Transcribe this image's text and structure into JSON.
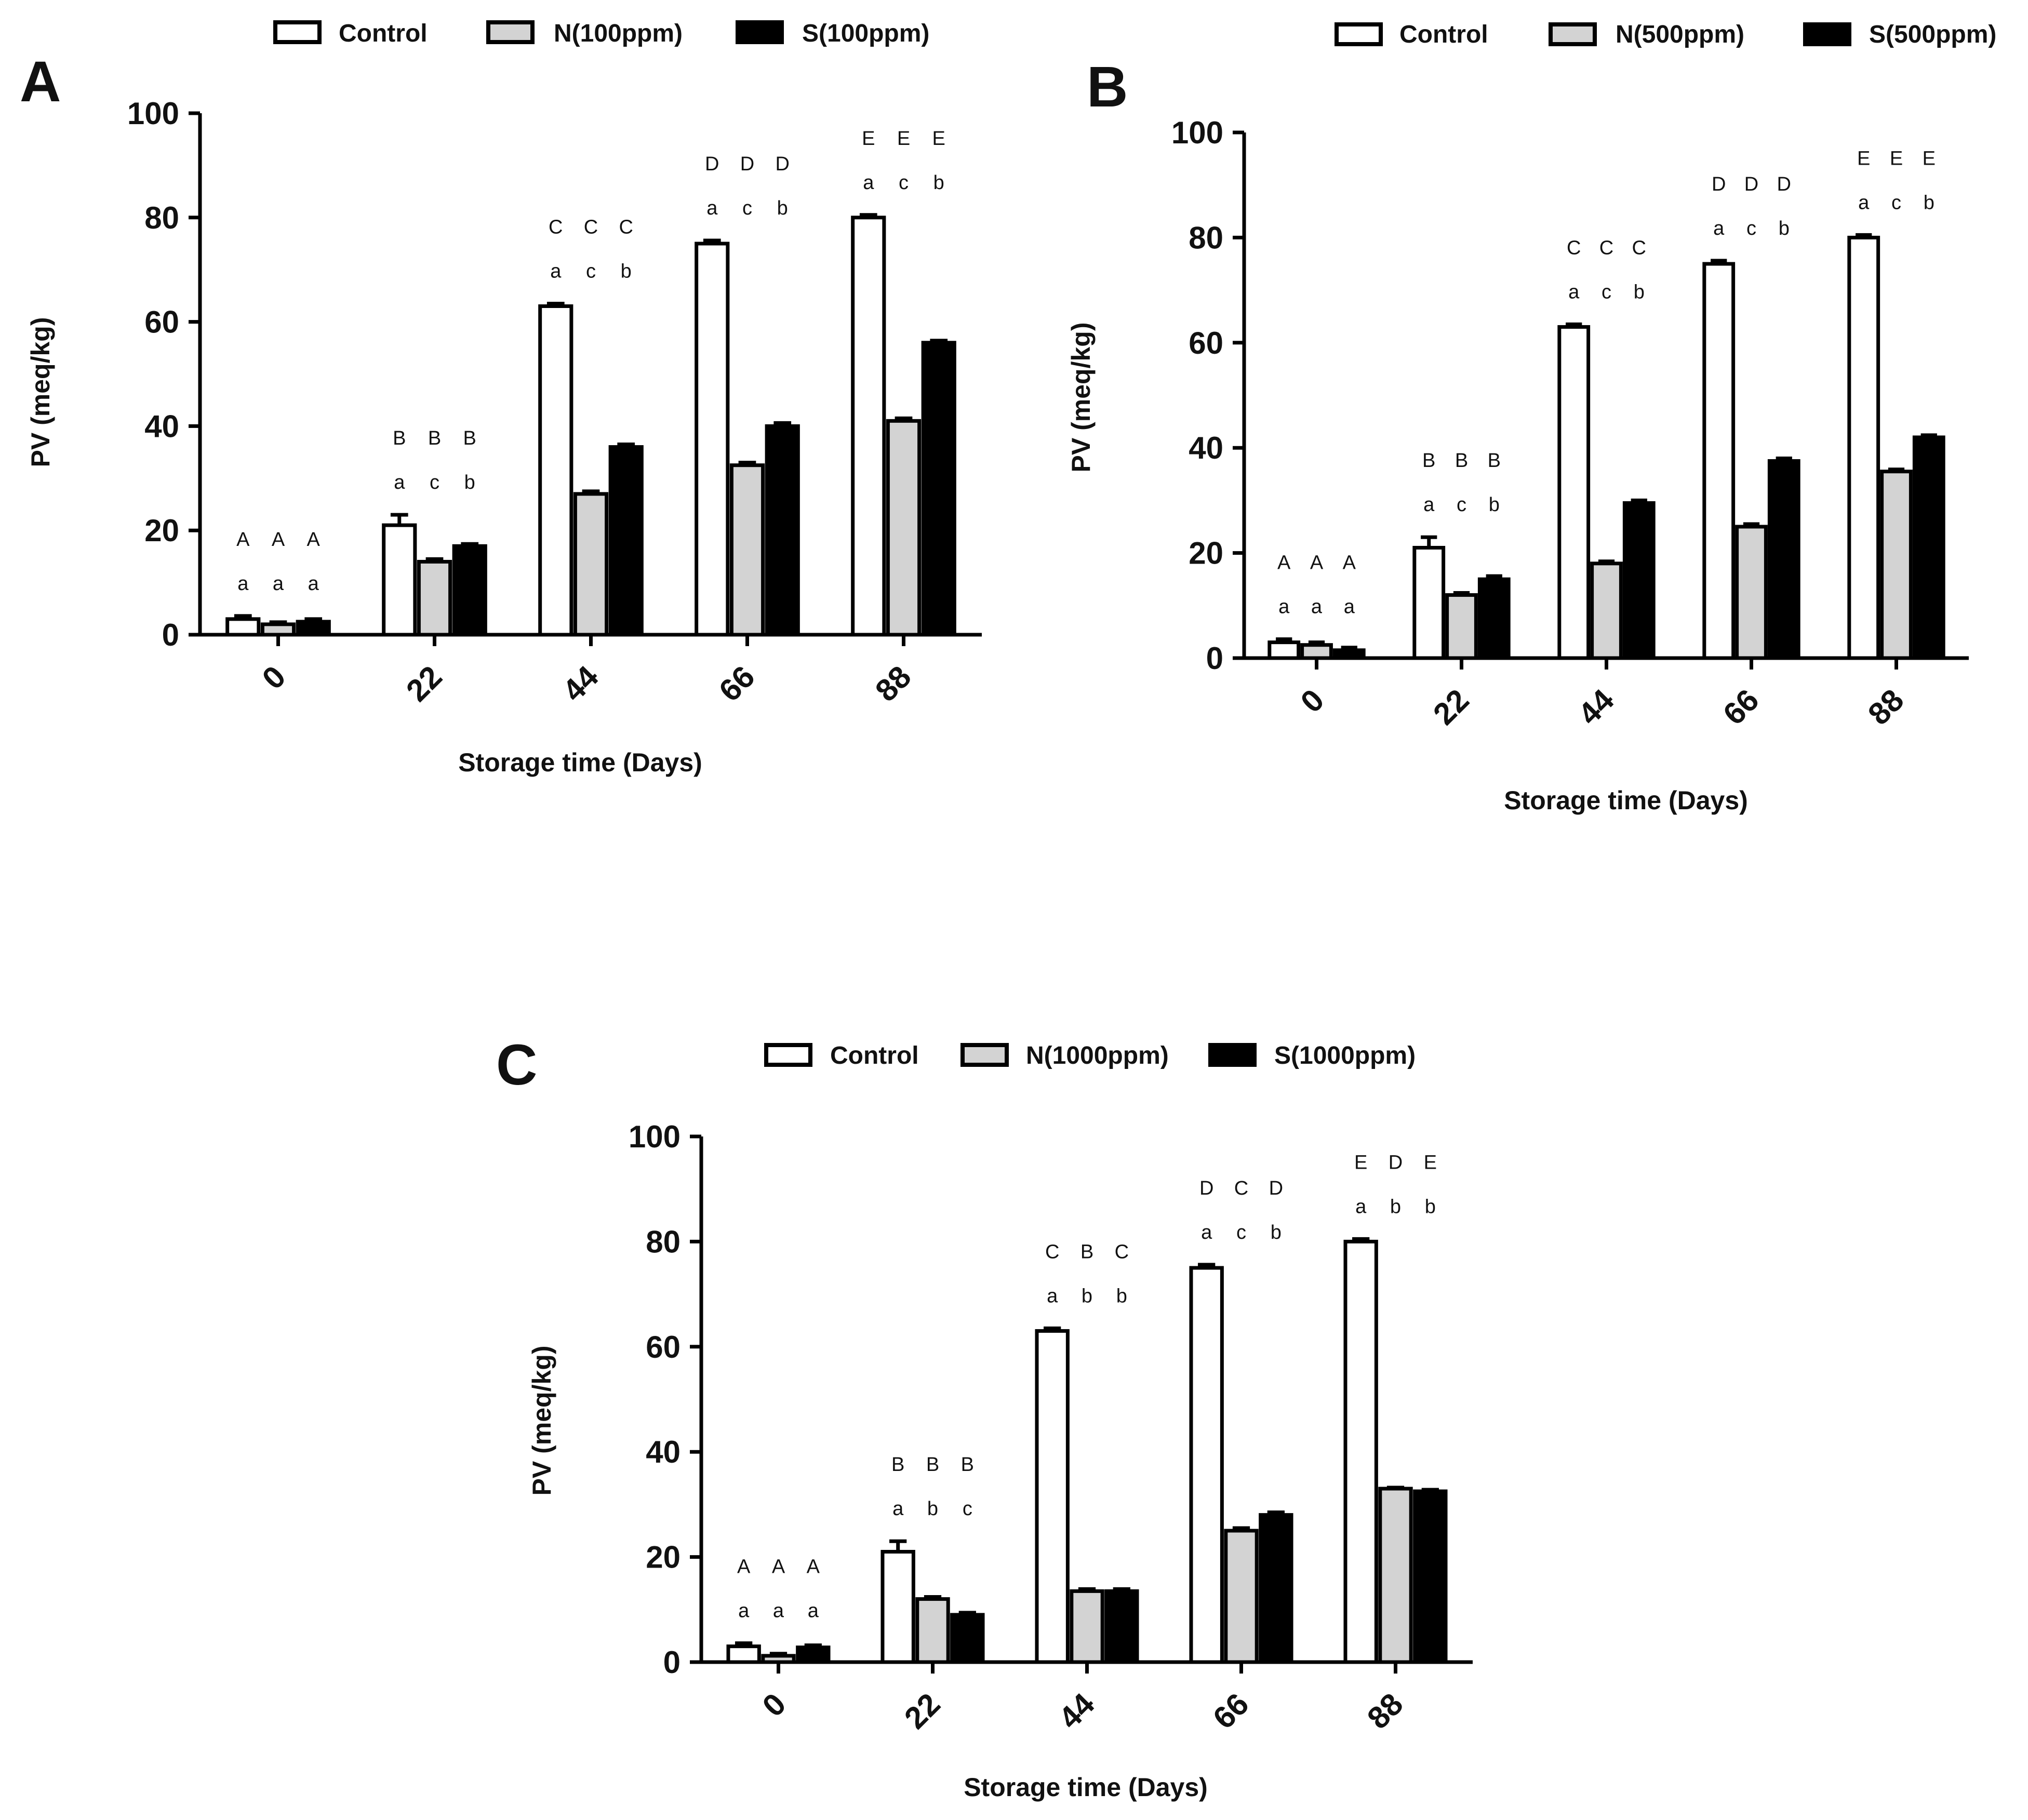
{
  "figure": {
    "fill_colors": {
      "Control": "#ffffff",
      "N": "#d3d3d3",
      "S": "#000000"
    },
    "stroke_color": "#000000"
  },
  "chart_data": [
    {
      "type": "bar",
      "panel": "A",
      "categories": [
        "0",
        "22",
        "44",
        "66",
        "88"
      ],
      "series": [
        {
          "name": "Control",
          "values": [
            3,
            21,
            63,
            75,
            80
          ],
          "errors": [
            0.6,
            2.0,
            0.5,
            0.6,
            0.5
          ],
          "sig_lower": [
            "a",
            "a",
            "a",
            "a",
            "a"
          ],
          "sig_upper": [
            "A",
            "B",
            "C",
            "D",
            "E"
          ]
        },
        {
          "name": "N(100ppm)",
          "values": [
            2,
            14,
            27,
            32.5,
            41
          ],
          "errors": [
            0.4,
            0.5,
            0.5,
            0.5,
            0.5
          ],
          "sig_lower": [
            "a",
            "c",
            "c",
            "c",
            "c"
          ],
          "sig_upper": [
            "A",
            "B",
            "C",
            "D",
            "E"
          ]
        },
        {
          "name": "S(100ppm)",
          "values": [
            2.5,
            17,
            36,
            40,
            56
          ],
          "errors": [
            0.5,
            0.4,
            0.5,
            0.6,
            0.4
          ],
          "sig_lower": [
            "a",
            "b",
            "b",
            "b",
            "b"
          ],
          "sig_upper": [
            "A",
            "B",
            "C",
            "D",
            "E"
          ]
        }
      ],
      "title": "",
      "xlabel": "Storage time (Days)",
      "ylabel": "PV (meq/kg)",
      "ylim": [
        0,
        100
      ],
      "yticks": [
        "0",
        "20",
        "40",
        "60",
        "80",
        "100"
      ],
      "legend": "top"
    },
    {
      "type": "bar",
      "panel": "B",
      "categories": [
        "0",
        "22",
        "44",
        "66",
        "88"
      ],
      "series": [
        {
          "name": "Control",
          "values": [
            3,
            21,
            63,
            75,
            80
          ],
          "errors": [
            0.6,
            2.0,
            0.5,
            0.6,
            0.5
          ],
          "sig_lower": [
            "a",
            "a",
            "a",
            "a",
            "a"
          ],
          "sig_upper": [
            "A",
            "B",
            "C",
            "D",
            "E"
          ]
        },
        {
          "name": "N(500ppm)",
          "values": [
            2.5,
            12,
            18,
            25,
            35.5
          ],
          "errors": [
            0.5,
            0.4,
            0.4,
            0.5,
            0.4
          ],
          "sig_lower": [
            "a",
            "c",
            "c",
            "c",
            "c"
          ],
          "sig_upper": [
            "A",
            "B",
            "C",
            "D",
            "E"
          ]
        },
        {
          "name": "S(500ppm)",
          "values": [
            1.5,
            15,
            29.5,
            37.5,
            42
          ],
          "errors": [
            0.5,
            0.6,
            0.5,
            0.5,
            0.4
          ],
          "sig_lower": [
            "a",
            "b",
            "b",
            "b",
            "b"
          ],
          "sig_upper": [
            "A",
            "B",
            "C",
            "D",
            "E"
          ]
        }
      ],
      "title": "",
      "xlabel": "Storage time (Days)",
      "ylabel": "PV (meq/kg)",
      "ylim": [
        0,
        100
      ],
      "yticks": [
        "0",
        "20",
        "40",
        "60",
        "80",
        "100"
      ],
      "legend": "top"
    },
    {
      "type": "bar",
      "panel": "C",
      "categories": [
        "0",
        "22",
        "44",
        "66",
        "88"
      ],
      "series": [
        {
          "name": "Control",
          "values": [
            3,
            21,
            63,
            75,
            80
          ],
          "errors": [
            0.6,
            2.0,
            0.5,
            0.6,
            0.5
          ],
          "sig_lower": [
            "a",
            "a",
            "a",
            "a",
            "a"
          ],
          "sig_upper": [
            "A",
            "B",
            "C",
            "D",
            "E"
          ]
        },
        {
          "name": "N(1000ppm)",
          "values": [
            1.2,
            12,
            13.5,
            25,
            33
          ],
          "errors": [
            0.4,
            0.4,
            0.4,
            0.5,
            0.2
          ],
          "sig_lower": [
            "a",
            "b",
            "b",
            "c",
            "b"
          ],
          "sig_upper": [
            "A",
            "B",
            "B",
            "C",
            "D"
          ]
        },
        {
          "name": "S(1000ppm)",
          "values": [
            2.8,
            9,
            13.5,
            28,
            32.5
          ],
          "errors": [
            0.4,
            0.4,
            0.4,
            0.5,
            0.3
          ],
          "sig_lower": [
            "a",
            "c",
            "b",
            "b",
            "b"
          ],
          "sig_upper": [
            "A",
            "B",
            "C",
            "D",
            "E"
          ]
        }
      ],
      "title": "",
      "xlabel": "Storage time (Days)",
      "ylabel": "PV (meq/kg)",
      "ylim": [
        0,
        100
      ],
      "yticks": [
        "0",
        "20",
        "40",
        "60",
        "80",
        "100"
      ],
      "legend": "top"
    }
  ]
}
